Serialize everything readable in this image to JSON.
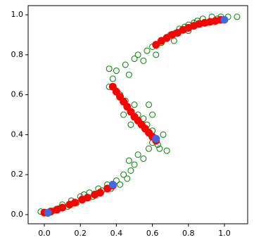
{
  "chart_data": {
    "type": "scatter",
    "xlim": [
      -0.09,
      1.129
    ],
    "ylim": [
      -0.046,
      1.046
    ],
    "xticks": [
      {
        "value": 0,
        "label": "0.0"
      },
      {
        "value": 0.2,
        "label": "0.2"
      },
      {
        "value": 0.4,
        "label": "0.4"
      },
      {
        "value": 0.6,
        "label": "0.6"
      },
      {
        "value": 0.8,
        "label": "0.8"
      },
      {
        "value": 1,
        "label": "1.0"
      }
    ],
    "yticks": [
      {
        "value": 0,
        "label": "0.0"
      },
      {
        "value": 0.2,
        "label": "0.2"
      },
      {
        "value": 0.4,
        "label": "0.4"
      },
      {
        "value": 0.6,
        "label": "0.6"
      },
      {
        "value": 0.8,
        "label": "0.8"
      },
      {
        "value": 1,
        "label": "1.0"
      }
    ],
    "series": [
      {
        "color": "#008000",
        "hollow": true,
        "x": [
          -0.02,
          0.02,
          0.05,
          0.08,
          0.1,
          0.13,
          0.15,
          0.18,
          0.2,
          0.22,
          0.25,
          0.27,
          0.3,
          0.32,
          0.35,
          0.37,
          0.4,
          0.42,
          0.44,
          0.46,
          0.48,
          0.5,
          0.47,
          0.52,
          0.55,
          0.58,
          0.6,
          0.63,
          0.66,
          0.64,
          0.68,
          0.6,
          0.57,
          0.55,
          0.52,
          0.5,
          0.45,
          0.42,
          0.4,
          0.36,
          0.38,
          0.4,
          0.36,
          0.45,
          0.47,
          0.5,
          0.52,
          0.55,
          0.57,
          0.6,
          0.62,
          0.58,
          0.6,
          0.48,
          0.44,
          0.65,
          0.68,
          0.7,
          0.73,
          0.75,
          0.78,
          0.8,
          0.83,
          0.85,
          0.88,
          0.9,
          0.93,
          0.96,
          0.98,
          1.02,
          1.07,
          0.72,
          0.8
        ],
        "values": [
          0.015,
          0.005,
          0.02,
          0.03,
          0.05,
          0.04,
          0.07,
          0.06,
          0.09,
          0.1,
          0.11,
          0.09,
          0.13,
          0.12,
          0.15,
          0.13,
          0.17,
          0.15,
          0.2,
          0.18,
          0.22,
          0.25,
          0.27,
          0.3,
          0.28,
          0.33,
          0.36,
          0.35,
          0.4,
          0.33,
          0.32,
          0.42,
          0.45,
          0.48,
          0.5,
          0.55,
          0.57,
          0.6,
          0.62,
          0.64,
          0.68,
          0.72,
          0.73,
          0.75,
          0.7,
          0.78,
          0.8,
          0.77,
          0.82,
          0.84,
          0.8,
          0.55,
          0.5,
          0.45,
          0.5,
          0.86,
          0.88,
          0.9,
          0.91,
          0.93,
          0.94,
          0.95,
          0.96,
          0.97,
          0.98,
          0.96,
          0.99,
          0.98,
          0.99,
          0.99,
          0.99,
          0.87,
          0.92
        ]
      },
      {
        "color": "#ff0000",
        "hollow": false,
        "x": [
          0,
          0.035,
          0.07,
          0.1,
          0.14,
          0.17,
          0.21,
          0.24,
          0.28,
          0.31,
          0.35,
          0.38,
          0.38,
          0.4,
          0.42,
          0.44,
          0.46,
          0.48,
          0.5,
          0.52,
          0.54,
          0.56,
          0.58,
          0.6,
          0.62,
          0.62,
          0.65,
          0.68,
          0.71,
          0.74,
          0.77,
          0.8,
          0.83,
          0.86,
          0.89,
          0.92,
          0.95,
          0.98
        ],
        "values": [
          0.01,
          0.015,
          0.025,
          0.035,
          0.05,
          0.06,
          0.075,
          0.085,
          0.1,
          0.11,
          0.13,
          0.145,
          0.64,
          0.615,
          0.59,
          0.565,
          0.54,
          0.515,
          0.49,
          0.47,
          0.45,
          0.43,
          0.41,
          0.39,
          0.37,
          0.85,
          0.87,
          0.885,
          0.9,
          0.91,
          0.925,
          0.935,
          0.945,
          0.955,
          0.96,
          0.965,
          0.97,
          0.975
        ]
      },
      {
        "color": "#4169e1",
        "hollow": false,
        "x": [
          0.02,
          0.38,
          0.62,
          1.0
        ],
        "values": [
          0.01,
          0.15,
          0.38,
          0.975
        ]
      }
    ]
  }
}
